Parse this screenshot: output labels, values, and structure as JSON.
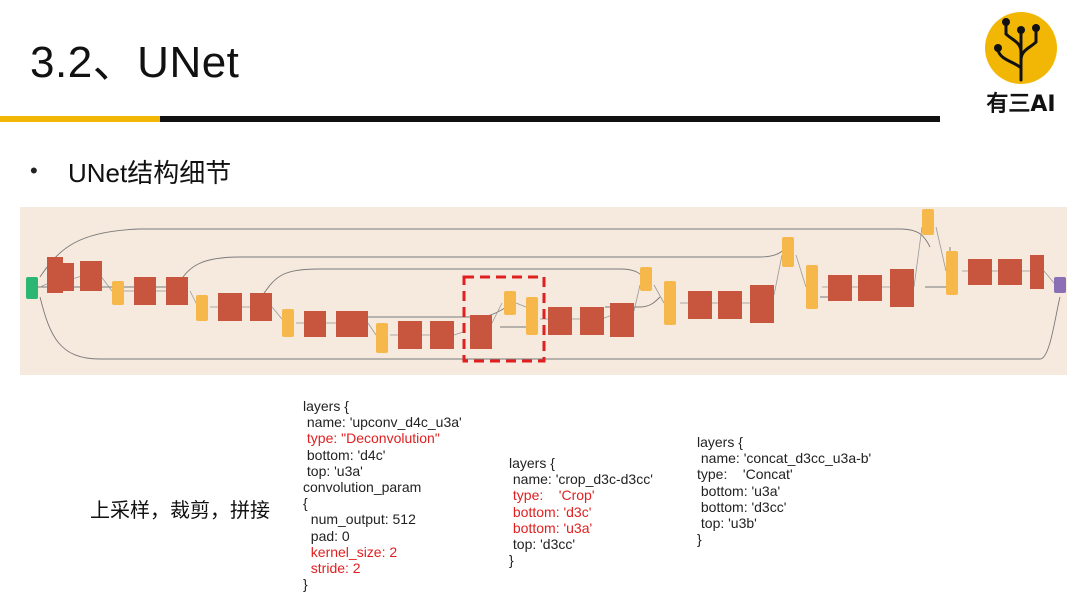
{
  "slide": {
    "title": "3.2、UNet",
    "bullet_marker": "•",
    "bullet_text": "UNet结构细节",
    "caption": "上采样，裁剪，拼接"
  },
  "logo": {
    "text": "有三AI",
    "icon": "circuit-tree-icon"
  },
  "colors": {
    "accent_yellow": "#f2b705",
    "rule_black": "#111111",
    "diagram_bg": "#f6e9dd",
    "node_red": "#c8553d",
    "node_orange": "#f7b84b",
    "node_green": "#2bb673",
    "node_purple": "#8a6fb5",
    "highlight_red": "#e02020"
  },
  "code_blocks": {
    "deconv": {
      "lines": [
        {
          "t": "layers {",
          "red": false
        },
        {
          "t": " name: 'upconv_d4c_u3a'",
          "red": false
        },
        {
          "t": " type: \"Deconvolution\"",
          "red": true
        },
        {
          "t": " bottom: 'd4c'",
          "red": false
        },
        {
          "t": " top: 'u3a'",
          "red": false
        },
        {
          "t": "convolution_param",
          "red": false
        },
        {
          "t": "{",
          "red": false
        },
        {
          "t": "  num_output: 512",
          "red": false
        },
        {
          "t": "  pad: 0",
          "red": false
        },
        {
          "t": "  kernel_size: 2",
          "red": true
        },
        {
          "t": "  stride: 2",
          "red": true
        },
        {
          "t": "}",
          "red": false
        }
      ]
    },
    "crop": {
      "lines": [
        {
          "t": "layers {",
          "red": false
        },
        {
          "t": " name: 'crop_d3c-d3cc'",
          "red": false
        },
        {
          "t": " type:    'Crop'",
          "red": true
        },
        {
          "t": " bottom: 'd3c'",
          "red": true
        },
        {
          "t": " bottom: 'u3a'",
          "red": true
        },
        {
          "t": " top: 'd3cc'",
          "red": false
        },
        {
          "t": "}",
          "red": false
        }
      ]
    },
    "concat": {
      "lines": [
        {
          "t": "layers {",
          "red": false
        },
        {
          "t": " name: 'concat_d3cc_u3a-b'",
          "red": false
        },
        {
          "t": "type:    'Concat'",
          "red": false
        },
        {
          "t": " bottom: 'u3a'",
          "red": false
        },
        {
          "t": " bottom: 'd3cc'",
          "red": false
        },
        {
          "t": " top: 'u3b'",
          "red": false
        },
        {
          "t": "}",
          "red": false
        }
      ]
    }
  }
}
